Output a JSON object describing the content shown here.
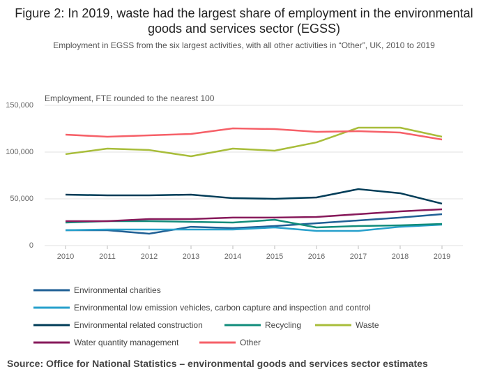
{
  "chart_data": {
    "type": "line",
    "title": "Figure 2: In 2019, waste had the largest share of employment in the environmental goods and services sector (EGSS)",
    "subtitle": "Employment in EGSS from the six largest activities, with all other activities in “Other”, UK, 2010 to 2019",
    "y_label": "Employment, FTE rounded to the nearest 100",
    "source": "Source: Office for National Statistics – environmental goods and services sector estimates",
    "x": [
      2010,
      2011,
      2012,
      2013,
      2014,
      2015,
      2016,
      2017,
      2018,
      2019
    ],
    "xlim": [
      2010,
      2019
    ],
    "xticks": [
      2010,
      2011,
      2012,
      2013,
      2014,
      2015,
      2016,
      2017,
      2018,
      2019
    ],
    "ylim": [
      0,
      150000
    ],
    "yticks": [
      0,
      {
        "value": 50000,
        "label": "50,000"
      },
      {
        "value": 100000,
        "label": "100,000"
      },
      {
        "value": 150000,
        "label": "150,000"
      }
    ],
    "grid": true,
    "series": [
      {
        "name": "Environmental charities",
        "color": "#206095",
        "values": [
          16400,
          16400,
          12700,
          20100,
          18700,
          20900,
          23900,
          26900,
          29900,
          33600
        ]
      },
      {
        "name": "Environmental low emission vehicles, carbon capture and inspection and control",
        "color": "#27a0cc",
        "values": [
          16400,
          17200,
          17200,
          17200,
          17200,
          19400,
          15700,
          15700,
          20100,
          22400
        ]
      },
      {
        "name": "Environmental related construction",
        "color": "#003c57",
        "values": [
          54500,
          53700,
          53700,
          54500,
          50700,
          50000,
          51500,
          60400,
          56000,
          44800
        ]
      },
      {
        "name": "Recycling",
        "color": "#118c7b",
        "values": [
          24600,
          26100,
          26100,
          25400,
          24600,
          27600,
          19400,
          20900,
          21600,
          23100
        ]
      },
      {
        "name": "Waste",
        "color": "#a8bd3a",
        "values": [
          97800,
          103700,
          102200,
          95500,
          103700,
          101500,
          110400,
          126100,
          126100,
          116400
        ]
      },
      {
        "name": "Water quantity management",
        "color": "#871a5b",
        "values": [
          26100,
          26100,
          28400,
          28400,
          29900,
          29900,
          30600,
          33600,
          36600,
          38800
        ]
      },
      {
        "name": "Other",
        "color": "#f66068",
        "values": [
          118700,
          116400,
          117900,
          119400,
          125400,
          124600,
          121600,
          122400,
          120900,
          113400
        ]
      }
    ]
  }
}
